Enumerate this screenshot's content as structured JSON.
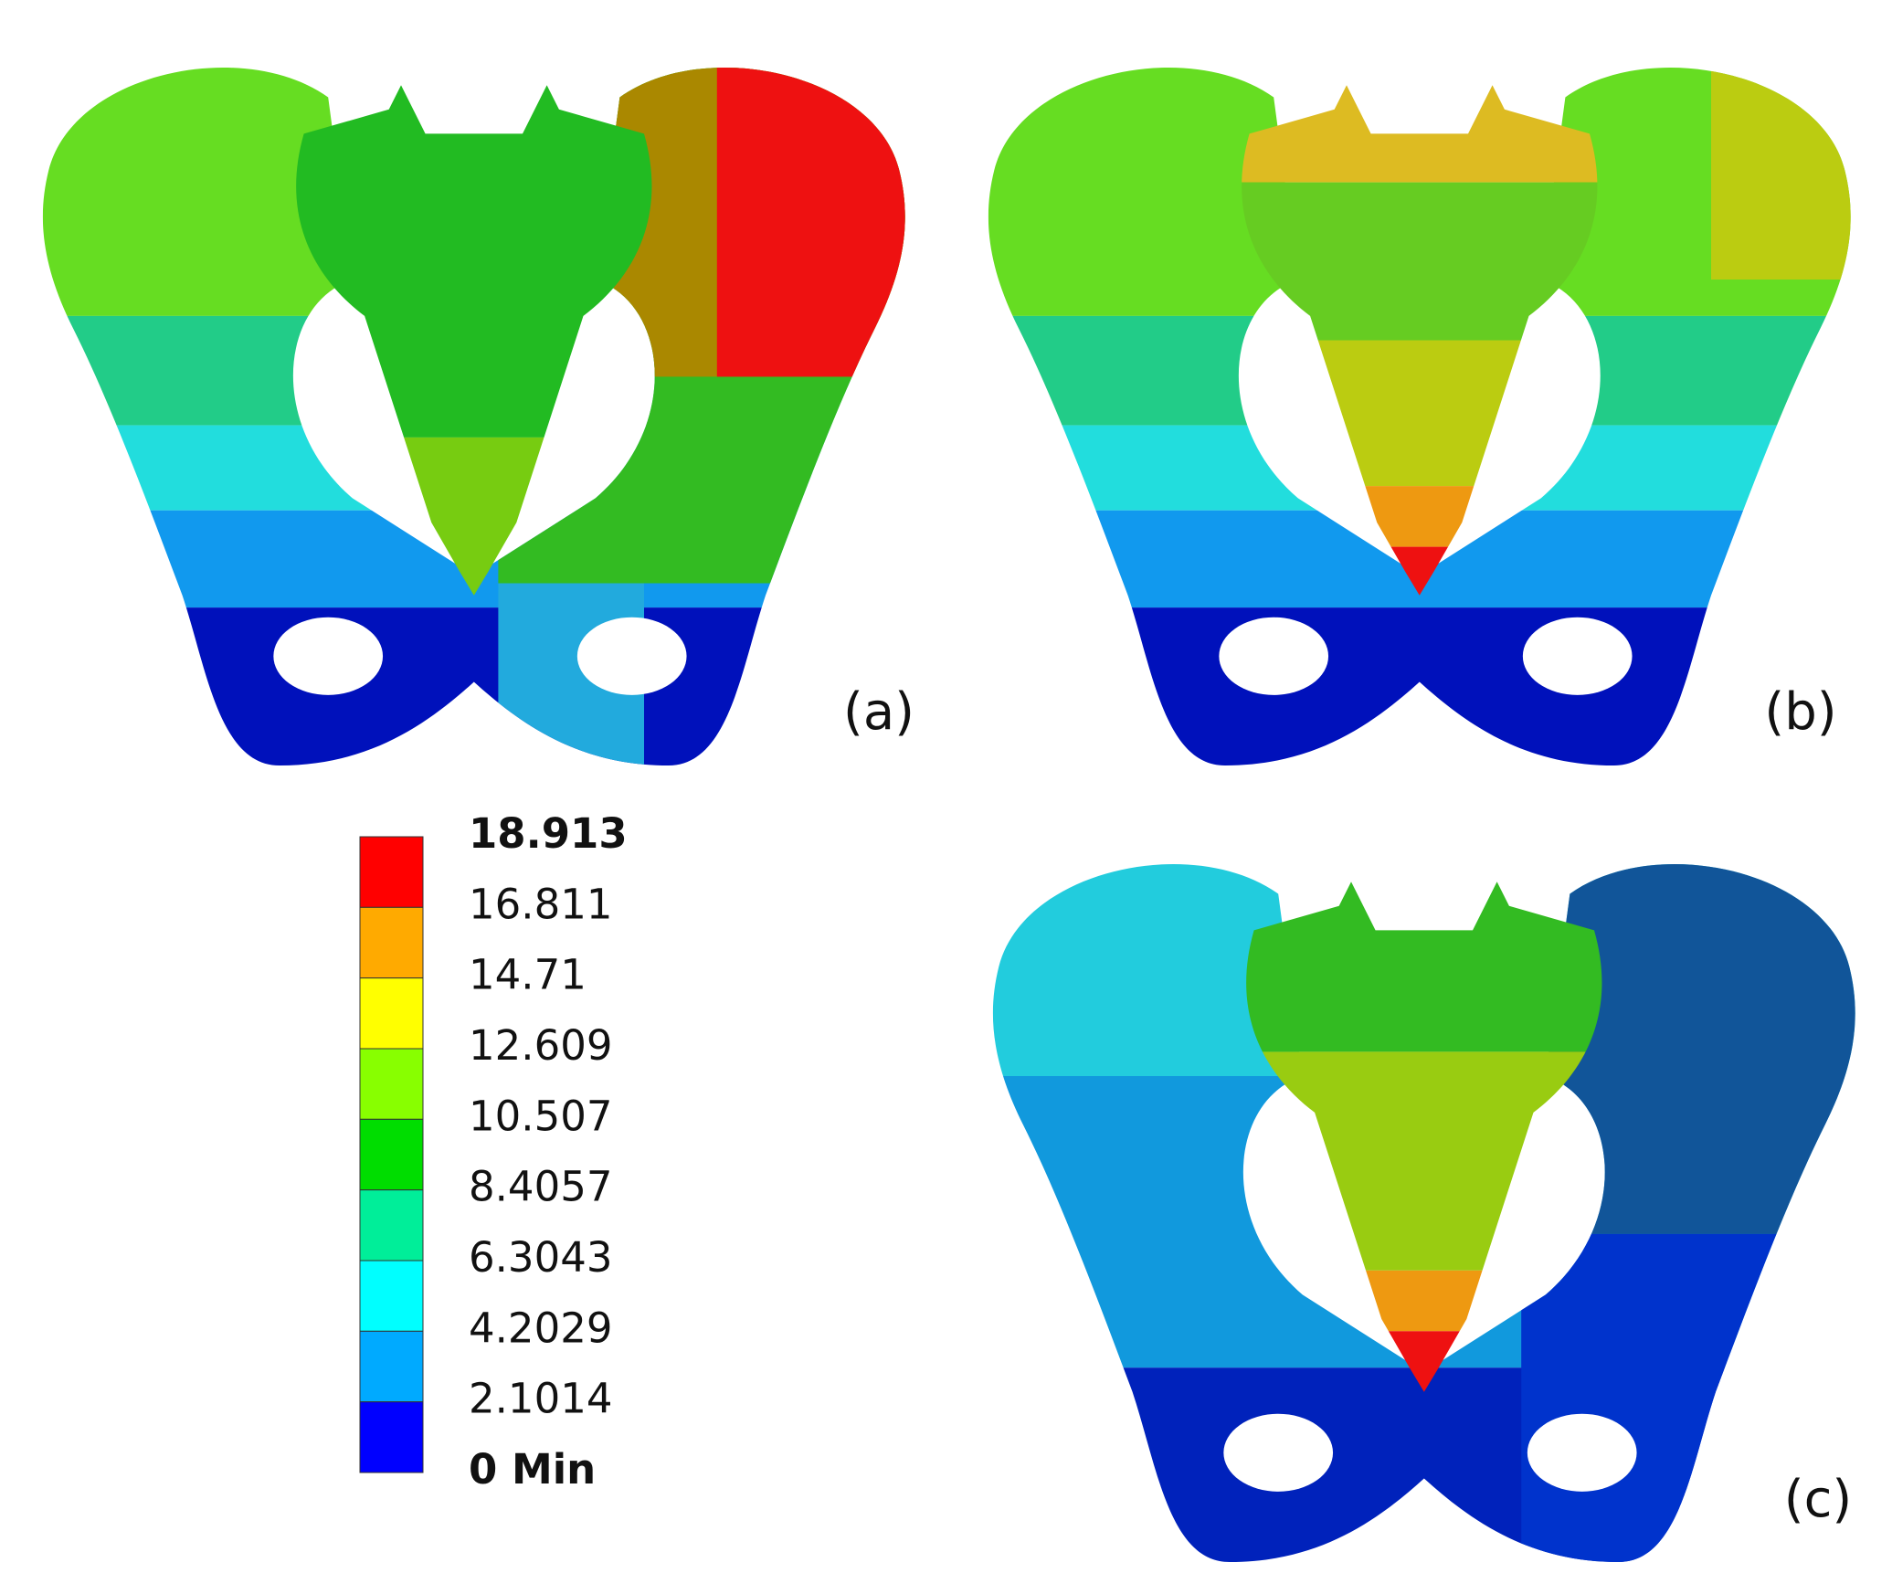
{
  "panels": [
    {
      "label": "(a)"
    },
    {
      "label": "(b)"
    },
    {
      "label": "(c)"
    }
  ],
  "legend": {
    "labels": [
      "18.913",
      "16.811",
      "14.71",
      "12.609",
      "10.507",
      "8.4057",
      "6.3043",
      "4.2029",
      "2.1014",
      "0 Min"
    ],
    "colors": [
      "#ff0000",
      "#ffaa00",
      "#ffff00",
      "#88ff00",
      "#00dd00",
      "#00ee99",
      "#00ffff",
      "#00aaff",
      "#0000ff"
    ]
  }
}
